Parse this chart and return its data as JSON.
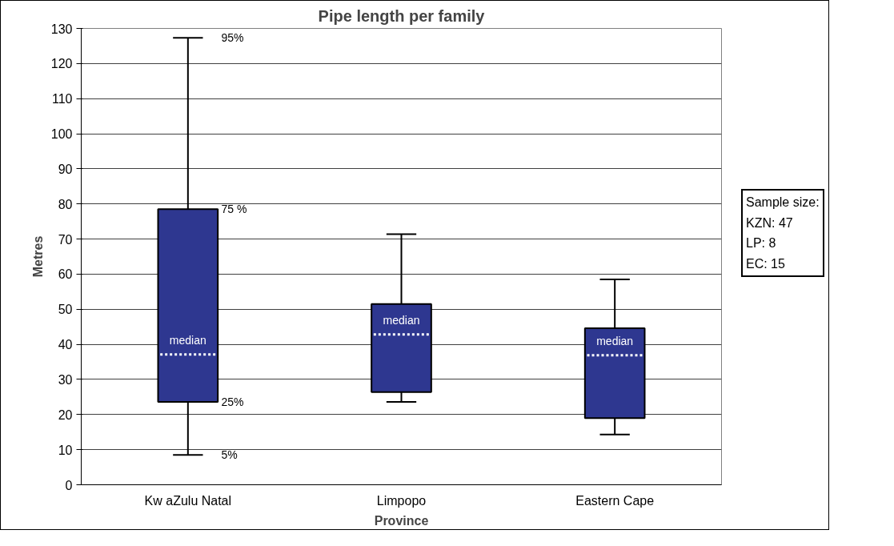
{
  "chart_data": {
    "type": "box",
    "title": "Pipe length per family",
    "xlabel": "Province",
    "ylabel": "Metres",
    "categories": [
      "Kw aZulu Natal",
      "Limpopo",
      "Eastern Cape"
    ],
    "boxes": [
      {
        "low": 8.5,
        "q1": 23.6,
        "median": 37.1,
        "q3": 78.5,
        "high": 127.3
      },
      {
        "low": 23.6,
        "q1": 26.4,
        "median": 42.8,
        "q3": 51.5,
        "high": 71.4
      },
      {
        "low": 14.3,
        "q1": 19.0,
        "median": 36.9,
        "q3": 44.6,
        "high": 58.5
      }
    ],
    "color": "#2e3790",
    "ylim": [
      0,
      130
    ],
    "yticks": [
      0,
      10,
      20,
      30,
      40,
      50,
      60,
      70,
      80,
      90,
      100,
      110,
      120,
      130
    ],
    "grid": "y",
    "annotations": [
      {
        "text": "95%",
        "x": "Kw aZulu Natal",
        "y": 127.3
      },
      {
        "text": "75 %",
        "x": "Kw aZulu Natal",
        "y": 78.5
      },
      {
        "text": "25%",
        "x": "Kw aZulu Natal",
        "y": 23.6
      },
      {
        "text": "5%",
        "x": "Kw aZulu Natal",
        "y": 8.5
      },
      {
        "text": "median",
        "x": "Kw aZulu Natal",
        "y": 37.1
      },
      {
        "text": "median",
        "x": "Limpopo",
        "y": 42.8
      },
      {
        "text": "median",
        "x": "Eastern Cape",
        "y": 36.9
      },
      "Sample size:\nKZN: 47\nLP: 8\nEC: 15"
    ]
  }
}
